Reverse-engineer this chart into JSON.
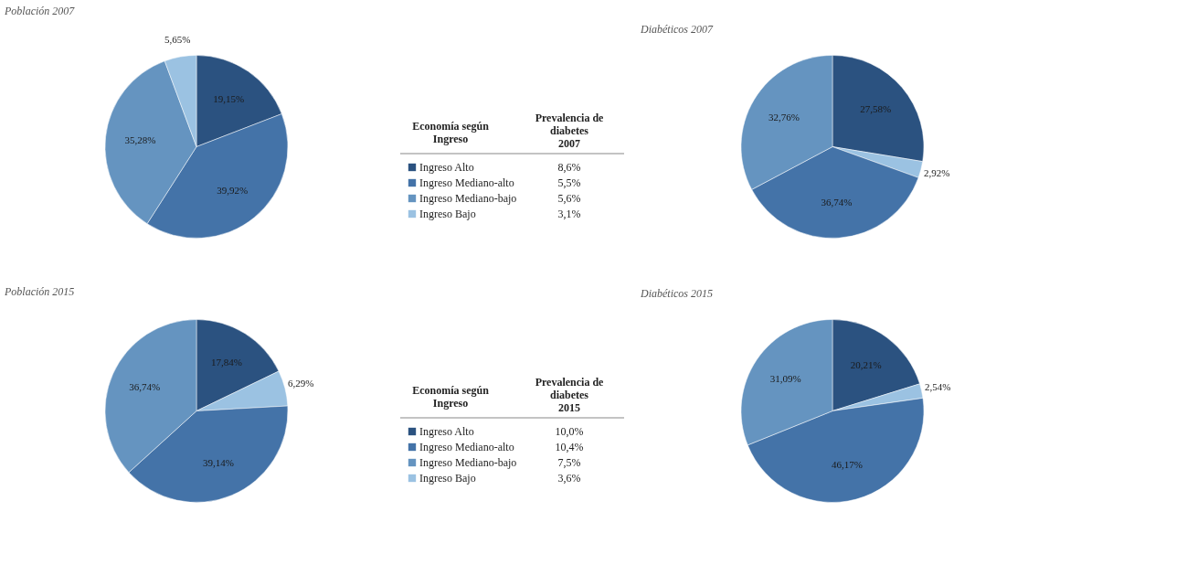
{
  "chart_data": [
    {
      "type": "pie",
      "title": "Población 2007",
      "categories": [
        null,
        null,
        null,
        null
      ],
      "values": [
        19.15,
        39.92,
        35.28,
        5.65
      ],
      "colors": [
        "#2b5280",
        "#4473a8",
        "#6594c0",
        "#9bc2e2"
      ],
      "value_labels": [
        "19,15%",
        "39,92%",
        "35,28%",
        "5,65%"
      ]
    },
    {
      "type": "other",
      "categories": [
        "Ingreso Alto",
        "Ingreso Mediano-alto",
        "Ingreso Mediano-bajo",
        "Ingreso Bajo"
      ],
      "colors": [
        "#2b5280",
        "#4473a8",
        "#6594c0",
        "#9bc2e2"
      ],
      "value_labels": [
        "8,6%",
        "5,5%",
        "5,6%",
        "3,1%"
      ],
      "annotations": [
        "Economía según\nIngreso",
        "Prevalencia de\ndiabetes\n2007"
      ]
    },
    {
      "type": "pie",
      "title": "Diabéticos 2007",
      "categories": [
        null,
        null,
        null,
        null
      ],
      "values": [
        27.58,
        2.92,
        36.74,
        32.76
      ],
      "colors": [
        "#2b5280",
        "#9bc2e2",
        "#4473a8",
        "#6594c0"
      ],
      "value_labels": [
        "27,58%",
        "2,92%",
        "36,74%",
        "32,76%"
      ]
    },
    {
      "type": "pie",
      "title": "Población 2015",
      "categories": [
        null,
        null,
        null,
        null
      ],
      "values": [
        17.84,
        6.29,
        39.14,
        36.74
      ],
      "colors": [
        "#2b5280",
        "#9bc2e2",
        "#4473a8",
        "#6594c0"
      ],
      "value_labels": [
        "17,84%",
        "6,29%",
        "39,14%",
        "36,74%"
      ]
    },
    {
      "type": "other",
      "categories": [
        "Ingreso Alto",
        "Ingreso Mediano-alto",
        "Ingreso Mediano-bajo",
        "Ingreso Bajo"
      ],
      "colors": [
        "#2b5280",
        "#4473a8",
        "#6594c0",
        "#9bc2e2"
      ],
      "value_labels": [
        "10,0%",
        "10,4%",
        "7,5%",
        "3,6%"
      ],
      "annotations": [
        "Economía según\nIngreso",
        "Prevalencia de\ndiabetes\n2015"
      ]
    },
    {
      "type": "pie",
      "title": "Diabéticos 2015",
      "categories": [
        null,
        null,
        null,
        null
      ],
      "values": [
        20.21,
        2.54,
        46.17,
        31.09
      ],
      "colors": [
        "#2b5280",
        "#9bc2e2",
        "#4473a8",
        "#6594c0"
      ],
      "value_labels": [
        "20,21%",
        "2,54%",
        "46,17%",
        "31,09%"
      ]
    }
  ]
}
